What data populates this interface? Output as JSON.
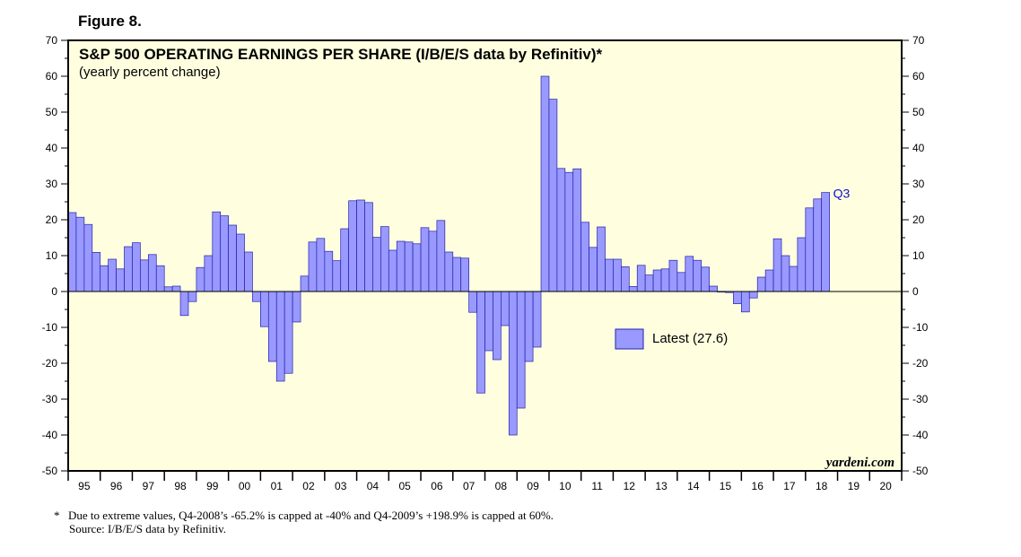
{
  "figure_label": "Figure 8.",
  "chart_data": {
    "type": "bar",
    "title": "S&P 500 OPERATING EARNINGS PER SHARE (I/B/E/S data by Refinitiv)*",
    "subtitle": "(yearly percent change)",
    "ylim": [
      -50,
      70
    ],
    "yticks": [
      70,
      60,
      50,
      40,
      30,
      20,
      10,
      0,
      -10,
      -20,
      -30,
      -40,
      -50
    ],
    "xtick_labels": [
      "95",
      "96",
      "97",
      "98",
      "99",
      "00",
      "01",
      "02",
      "03",
      "04",
      "05",
      "06",
      "07",
      "08",
      "09",
      "10",
      "11",
      "12",
      "13",
      "14",
      "15",
      "16",
      "17",
      "18",
      "19",
      "20"
    ],
    "x_start": "Q1-1995",
    "frequency": "quarterly",
    "values": [
      22.0,
      20.7,
      18.7,
      10.9,
      7.2,
      9.0,
      6.3,
      12.5,
      13.6,
      8.8,
      10.3,
      7.2,
      1.3,
      1.5,
      -6.7,
      -2.8,
      6.7,
      10.0,
      22.2,
      21.1,
      18.5,
      16.0,
      11.0,
      -2.8,
      -9.8,
      -19.5,
      -25.0,
      -22.8,
      -8.5,
      4.3,
      13.8,
      14.8,
      11.2,
      8.6,
      17.5,
      25.3,
      25.5,
      24.8,
      15.1,
      18.1,
      11.5,
      14.0,
      13.8,
      13.3,
      17.8,
      16.8,
      19.8,
      11.0,
      9.5,
      9.3,
      -5.8,
      -28.3,
      -16.5,
      -19.0,
      -9.5,
      -40.0,
      -32.5,
      -19.5,
      -15.5,
      60.0,
      53.6,
      34.3,
      33.2,
      34.2,
      19.3,
      12.3,
      18.0,
      9.0,
      9.0,
      6.9,
      1.4,
      7.3,
      4.6,
      6.0,
      6.3,
      8.7,
      5.3,
      9.8,
      8.7,
      6.8,
      1.5,
      0.0,
      -0.3,
      -3.4,
      -5.7,
      -1.8,
      4.0,
      6.0,
      14.7,
      10.0,
      7.0,
      15.0,
      23.3,
      25.8,
      27.6
    ],
    "bar_color": "#9999ff",
    "bar_edge_color": "#2222aa",
    "background_color": "#ffffe0",
    "legend": {
      "label": "Latest (27.6)",
      "placement": "center-right"
    },
    "annotation": "Q3",
    "credit": "yardeni.com",
    "grid": false
  },
  "footnote": {
    "marker": "*",
    "line1": "Due to extreme values, Q4-2008’s -65.2% is capped at -40% and Q4-2009’s +198.9% is capped at 60%.",
    "line2": "Source: I/B/E/S data by Refinitiv."
  }
}
